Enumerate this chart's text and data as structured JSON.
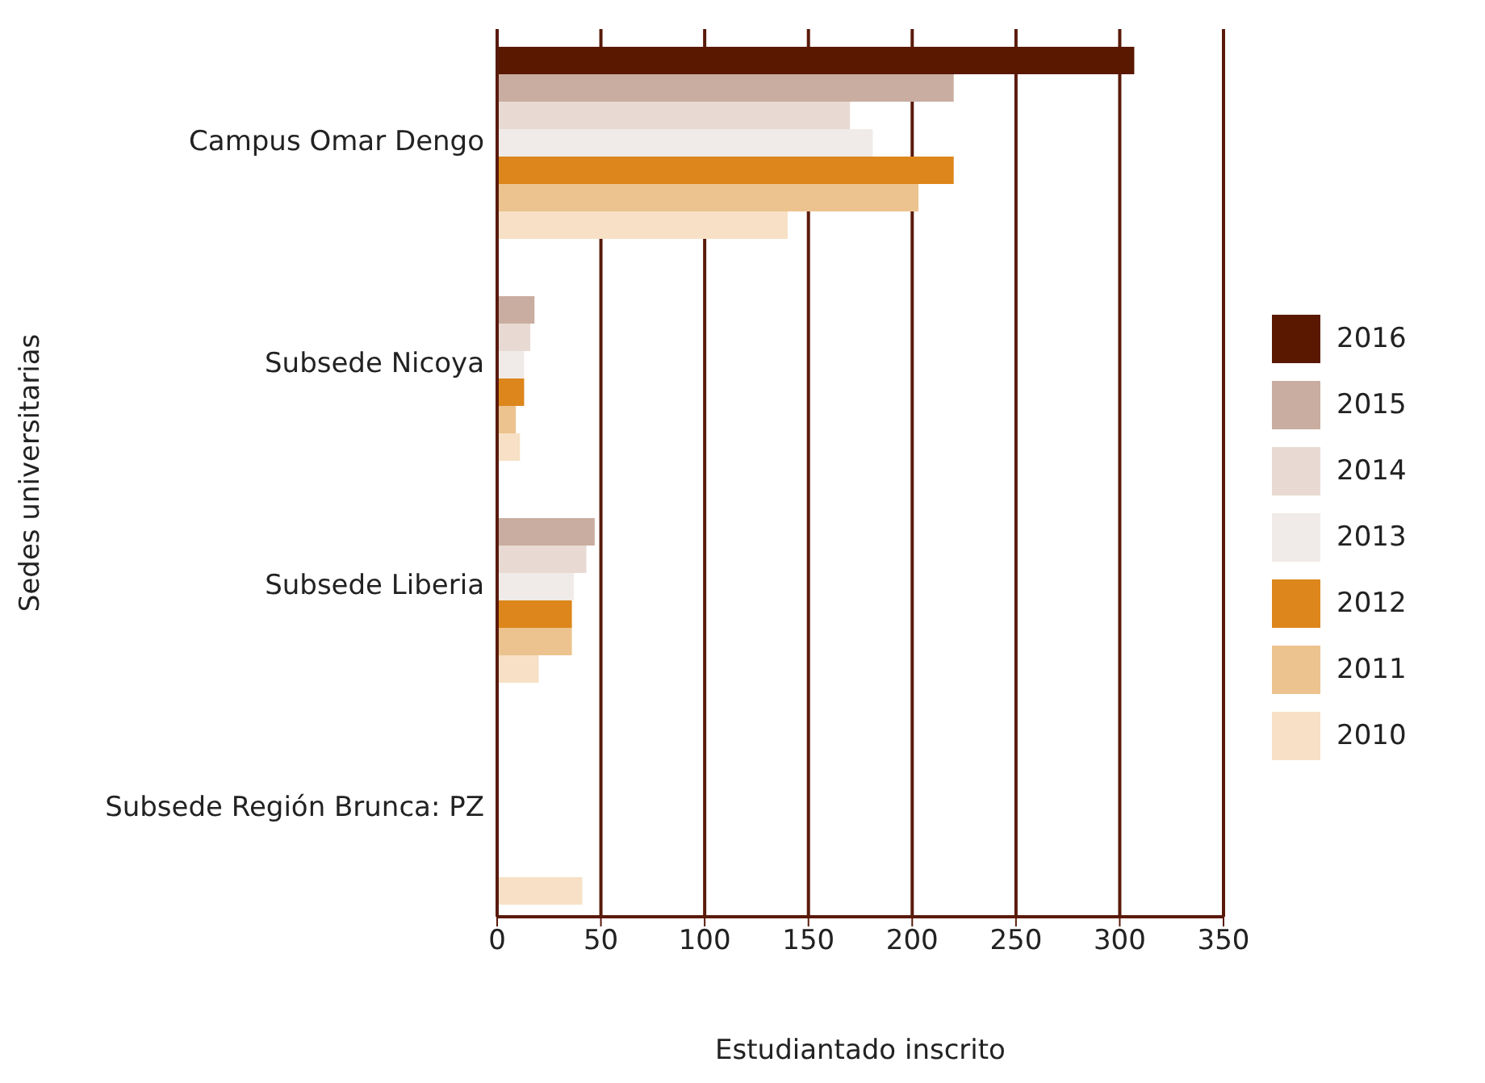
{
  "chart_data": {
    "type": "bar",
    "orientation": "horizontal",
    "xlabel": "Estudiantado inscrito",
    "ylabel": "Sedes universitarias",
    "categories": [
      "Campus Omar Dengo",
      "Subsede Nicoya",
      "Subsede Liberia",
      "Subsede Región Brunca: PZ"
    ],
    "series": [
      {
        "name": "2016",
        "color": "#5a1800",
        "values": [
          307,
          null,
          null,
          null
        ]
      },
      {
        "name": "2015",
        "color": "#c9ada0",
        "values": [
          220,
          18,
          47,
          null
        ]
      },
      {
        "name": "2014",
        "color": "#e8dad3",
        "values": [
          170,
          16,
          43,
          null
        ]
      },
      {
        "name": "2013",
        "color": "#f0ebe8",
        "values": [
          181,
          13,
          37,
          null
        ]
      },
      {
        "name": "2012",
        "color": "#dc861b",
        "values": [
          220,
          13,
          36,
          null
        ]
      },
      {
        "name": "2011",
        "color": "#ecc38e",
        "values": [
          203,
          9,
          36,
          null
        ]
      },
      {
        "name": "2010",
        "color": "#f7e0c5",
        "values": [
          140,
          11,
          20,
          41
        ]
      }
    ],
    "xlim": [
      0,
      350
    ],
    "xticks": [
      0,
      50,
      100,
      150,
      200,
      250,
      300,
      350
    ],
    "grid": "x",
    "legend": "right"
  }
}
